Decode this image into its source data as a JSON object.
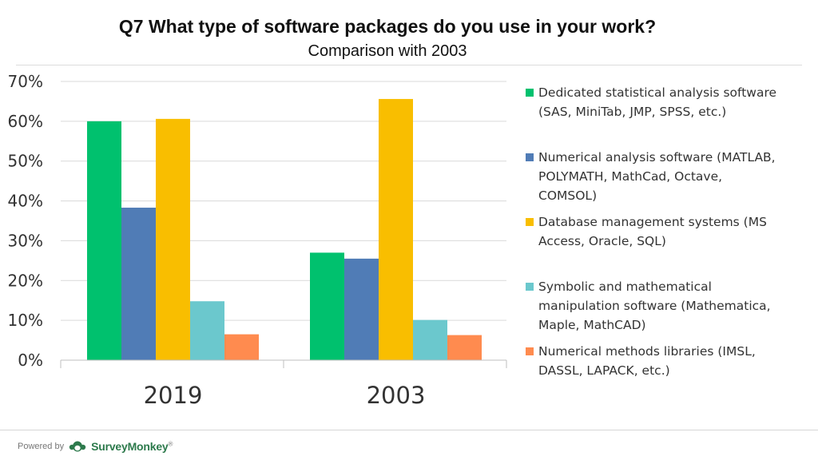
{
  "header": {
    "title": "Q7 What type of software packages do you use in your work?",
    "subtitle": "Comparison with 2003"
  },
  "chart_data": {
    "type": "bar",
    "categories": [
      "2019",
      "2003"
    ],
    "ylim": [
      0,
      70
    ],
    "yticks": [
      0,
      10,
      20,
      30,
      40,
      50,
      60,
      70
    ],
    "ytick_labels": [
      "0%",
      "10%",
      "20%",
      "30%",
      "40%",
      "50%",
      "60%",
      "70%"
    ],
    "grid": true,
    "legend_position": "right",
    "series": [
      {
        "name": "Dedicated statistical analysis software (SAS, MiniTab, JMP, SPSS, etc.)",
        "color": "#00c16e",
        "values": [
          60,
          27
        ]
      },
      {
        "name": "Numerical analysis software (MATLAB, POLYMATH, MathCad, Octave, COMSOL)",
        "color": "#507cb6",
        "values": [
          38.3,
          25.5
        ]
      },
      {
        "name": "Database management systems (MS Access, Oracle, SQL)",
        "color": "#f9be00",
        "values": [
          60.6,
          65.6
        ]
      },
      {
        "name": "Symbolic and mathematical manipulation software (Mathematica, Maple, MathCAD)",
        "color": "#6bc8cd",
        "values": [
          14.8,
          10.1
        ]
      },
      {
        "name": "Numerical methods libraries (IMSL, DASSL, LAPACK, etc.)",
        "color": "#ff8b4f",
        "values": [
          6.5,
          6.3
        ]
      }
    ]
  },
  "footer": {
    "powered_by": "Powered by",
    "brand": "SurveyMonkey",
    "brand_mark": "®",
    "logo_icon": "surveymonkey-logo-icon"
  }
}
